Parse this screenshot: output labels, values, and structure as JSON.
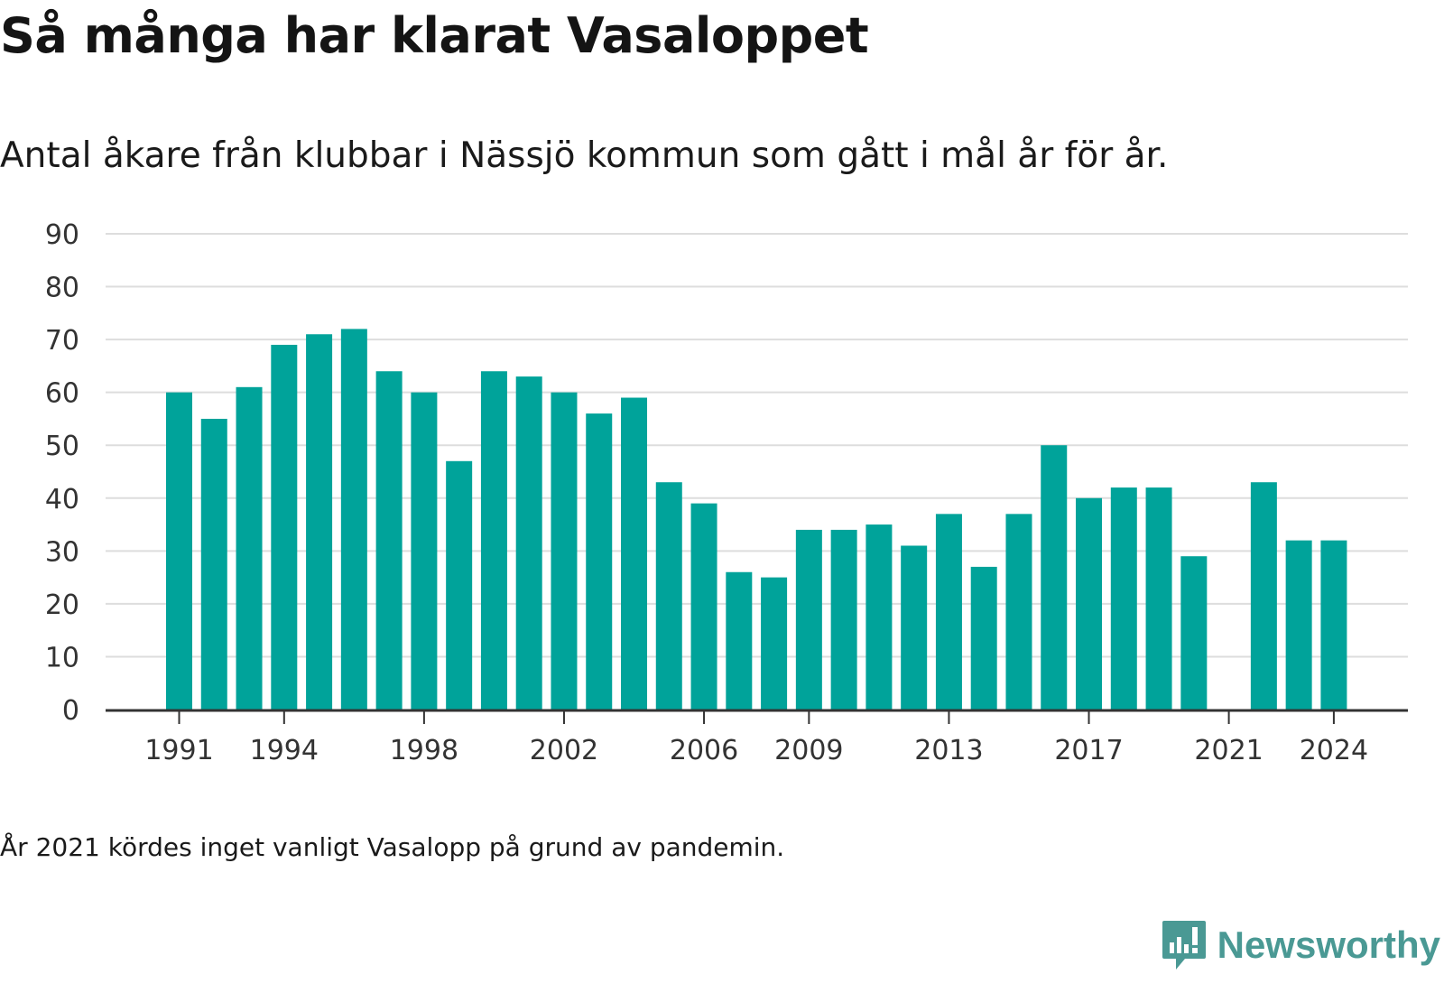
{
  "title": "Så många har klarat Vasaloppet",
  "subtitle": "Antal åkare från klubbar i Nässjö kommun som gått i mål år för år.",
  "note": "År 2021 kördes inget vanligt Vasalopp på grund av pandemin.",
  "brand": {
    "name": "Newsworthy",
    "icon": "newsworthy-logo-icon",
    "color": "#4a9994"
  },
  "colors": {
    "bar": "#00a39a",
    "grid": "#dddddd",
    "axis": "#333333"
  },
  "chart_data": {
    "type": "bar",
    "title": "Så många har klarat Vasaloppet",
    "subtitle": "Antal åkare från klubbar i Nässjö kommun som gått i mål år för år.",
    "xlabel": "",
    "ylabel": "",
    "ylim": [
      0,
      90
    ],
    "yticks": [
      "0",
      "10",
      "20",
      "30",
      "40",
      "50",
      "60",
      "70",
      "80",
      "90"
    ],
    "xticks": [
      "1991",
      "1994",
      "1998",
      "2002",
      "2006",
      "2009",
      "2013",
      "2017",
      "2021",
      "2024"
    ],
    "grid": true,
    "categories": [
      1991,
      1992,
      1993,
      1994,
      1995,
      1996,
      1997,
      1998,
      1999,
      2000,
      2001,
      2002,
      2003,
      2004,
      2005,
      2006,
      2007,
      2008,
      2009,
      2010,
      2011,
      2012,
      2013,
      2014,
      2015,
      2016,
      2017,
      2018,
      2019,
      2020,
      2021,
      2022,
      2023,
      2024
    ],
    "values": [
      60,
      55,
      61,
      69,
      71,
      72,
      64,
      60,
      47,
      64,
      63,
      60,
      56,
      59,
      43,
      39,
      26,
      25,
      34,
      34,
      35,
      31,
      37,
      27,
      37,
      50,
      40,
      42,
      42,
      29,
      null,
      43,
      32,
      32
    ]
  }
}
